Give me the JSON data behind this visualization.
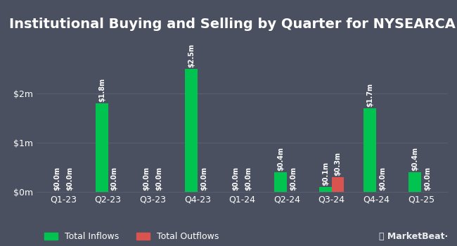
{
  "title": "Institutional Buying and Selling by Quarter for NYSEARCA:ECLN",
  "quarters": [
    "Q1-23",
    "Q2-23",
    "Q3-23",
    "Q4-23",
    "Q1-24",
    "Q2-24",
    "Q3-24",
    "Q4-24",
    "Q1-25"
  ],
  "inflows": [
    0.0,
    1.8,
    0.0,
    2.5,
    0.0,
    0.4,
    0.1,
    1.7,
    0.4
  ],
  "outflows": [
    0.0,
    0.0,
    0.0,
    0.0,
    0.0,
    0.0,
    0.3,
    0.0,
    0.0
  ],
  "inflow_labels": [
    "$0.0m",
    "$1.8m",
    "$0.0m",
    "$2.5m",
    "$0.0m",
    "$0.4m",
    "$0.1m",
    "$1.7m",
    "$0.4m"
  ],
  "outflow_labels": [
    "$0.0m",
    "$0.0m",
    "$0.0m",
    "$0.0m",
    "$0.0m",
    "$0.0m",
    "$0.3m",
    "$0.0m",
    "$0.0m"
  ],
  "inflow_color": "#00c44f",
  "outflow_color": "#d9534f",
  "background_color": "#4a5060",
  "text_color": "#ffffff",
  "grid_color": "#5a5f70",
  "bar_width": 0.28,
  "ylim": [
    0,
    3.0
  ],
  "yticks": [
    0,
    1,
    2
  ],
  "ytick_labels": [
    "$0m",
    "$1m",
    "$2m"
  ],
  "legend_inflow": "Total Inflows",
  "legend_outflow": "Total Outflows",
  "title_fontsize": 14,
  "label_fontsize": 7,
  "axis_fontsize": 9
}
